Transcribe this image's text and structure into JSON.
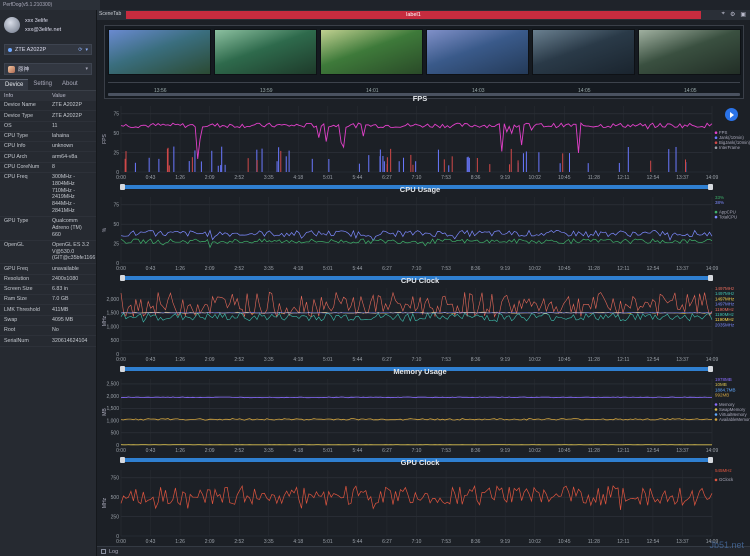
{
  "window": {
    "title": "PerfDog(v5.1.210300)"
  },
  "user": {
    "name": "xxx 3elife",
    "email": "xxx@3elife.net"
  },
  "device_select": {
    "label": "ZTE A2022P"
  },
  "app_select": {
    "label": "原神"
  },
  "tabs": [
    {
      "label": "Device"
    },
    {
      "label": "Setting"
    },
    {
      "label": "About"
    }
  ],
  "info_table": {
    "headers": {
      "key": "Info",
      "value": "Value"
    },
    "rows": [
      {
        "k": "Device Name",
        "v": "ZTE A2022P"
      },
      {
        "k": "Device Type",
        "v": "ZTE A2022P"
      },
      {
        "k": "OS",
        "v": "11"
      },
      {
        "k": "CPU Type",
        "v": "lahaina"
      },
      {
        "k": "CPU Info",
        "v": "unknown"
      },
      {
        "k": "CPU Arch",
        "v": "arm64-v8a"
      },
      {
        "k": "CPU CoreNum",
        "v": "8"
      },
      {
        "k": "CPU Freq",
        "v": "300MHz - 1804MHz\n710MHz - 2419MHz\n844MHz - 2841MHz"
      },
      {
        "k": "GPU Type",
        "v": "Qualcomm Adreno (TM) 660"
      },
      {
        "k": "OpenGL",
        "v": "OpenGL ES 3.2 V@530.0 (GIT@c35bfe1166"
      },
      {
        "k": "GPU Freq",
        "v": "unavailable"
      },
      {
        "k": "Resolution",
        "v": "2400x1080"
      },
      {
        "k": "Screen Size",
        "v": "6.83 in"
      },
      {
        "k": "Ram Size",
        "v": "7.0 GB"
      },
      {
        "k": "LMK Threshold",
        "v": "411MB"
      },
      {
        "k": "Swap",
        "v": "4095 MB"
      },
      {
        "k": "Root",
        "v": "No"
      },
      {
        "k": "SerialNum",
        "v": "320614624104"
      }
    ]
  },
  "topbar": {
    "scene_tab": "SceneTab",
    "label": "label1"
  },
  "thumbnails": {
    "times": [
      "13:56",
      "13:59",
      "14:01",
      "14:03",
      "14:05",
      "14:05"
    ]
  },
  "x_ticks": [
    "0:00",
    "0:43",
    "1:26",
    "2:09",
    "2:52",
    "3:35",
    "4:18",
    "5:01",
    "5:44",
    "6:27",
    "7:10",
    "7:53",
    "8:36",
    "9:19",
    "10:02",
    "10:45",
    "11:28",
    "12:11",
    "12:54",
    "13:37",
    "14:09"
  ],
  "charts": {
    "fps": {
      "title": "FPS",
      "ylabel": "FPS",
      "yticks": [
        "0",
        "25",
        "50",
        "75"
      ],
      "legend": [
        "FPS",
        "Jank(/10min)",
        "BigJank(/10min)",
        "InterFrame"
      ],
      "colors": [
        "#e040c8",
        "#6a78ff",
        "#d04848",
        "#9aa0a8"
      ]
    },
    "cpu": {
      "title": "CPU Usage",
      "ylabel": "%",
      "yticks": [
        "0",
        "25",
        "50",
        "75"
      ],
      "values_shown": [
        "33%",
        "38%"
      ],
      "legend": [
        "AppCPU",
        "TotalCPU"
      ],
      "colors": [
        "#3fb06a",
        "#7d8aff"
      ]
    },
    "cpuclock": {
      "title": "CPU Clock",
      "ylabel": "MHz",
      "yticks": [
        "0",
        "500",
        "1,000",
        "1,500",
        "2,000"
      ],
      "values_shown": [
        "1497MHz",
        "1497MHz",
        "1497MHz",
        "1497MHz",
        "1190MHz",
        "1190MHz",
        "1190MHz",
        "2035MHz"
      ],
      "colors": [
        "#e86a5a",
        "#3fc0b0",
        "#ffd84a",
        "#7d8aff"
      ]
    },
    "memory": {
      "title": "Memory Usage",
      "ylabel": "MB",
      "yticks": [
        "0",
        "500",
        "1,000",
        "1,500",
        "2,000",
        "2,500"
      ],
      "values_shown": [
        "1978MB",
        "10MB",
        "1884.7MB",
        "992MB"
      ],
      "legend": [
        "Memory",
        "SwapMemory",
        "VirtualMemory",
        "AvailableMemory"
      ],
      "colors": [
        "#8a6cff",
        "#d9c050",
        "#5fa8ff",
        "#d4a640"
      ]
    },
    "gpu": {
      "title": "GPU Clock",
      "ylabel": "MHz",
      "yticks": [
        "0",
        "250",
        "500",
        "750"
      ],
      "values_shown": [
        "545MHz"
      ],
      "legend": [
        "GClock"
      ],
      "colors": [
        "#e0553f"
      ]
    }
  },
  "logbar": {
    "label": "Log"
  },
  "watermark": "Jb51.net"
}
